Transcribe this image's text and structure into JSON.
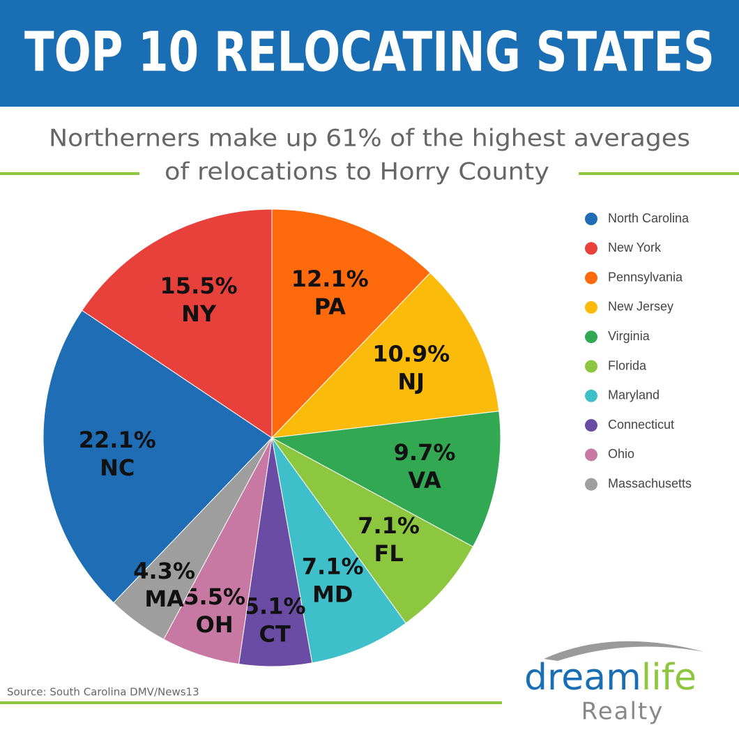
{
  "chart_data": {
    "type": "pie",
    "title": "TOP 10 RELOCATING STATES",
    "subtitle": [
      "Northerners make up 61% of the highest averages",
      "of relocations to Horry County"
    ],
    "categories": [
      "North Carolina",
      "New York",
      "Pennsylvania",
      "New Jersey",
      "Virginia",
      "Florida",
      "Maryland",
      "Connecticut",
      "Ohio",
      "Massachusetts"
    ],
    "values": [
      22.1,
      15.5,
      12.1,
      10.9,
      9.7,
      7.1,
      7.1,
      5.1,
      5.5,
      4.3
    ],
    "value_labels": [
      "22.1%",
      "15.5%",
      "12.1%",
      "10.9%",
      "9.7%",
      "7.1%",
      "7.1%",
      "5.1%",
      "5.5%",
      "4.3%"
    ],
    "abbreviations": [
      "NC",
      "NY",
      "PA",
      "NJ",
      "VA",
      "FL",
      "MD",
      "CT",
      "OH",
      "MA"
    ],
    "colors": [
      "#1f6db5",
      "#e8413b",
      "#fe6a0c",
      "#fbbb0b",
      "#33a853",
      "#8dc63f",
      "#3fbfc9",
      "#6a4ca5",
      "#c879a3",
      "#9e9e9e"
    ],
    "legend": "right"
  },
  "source": "Source: South Carolina DMV/News13",
  "logo": {
    "brand_a": "dream",
    "brand_b": "life",
    "tagline": "Realty"
  }
}
